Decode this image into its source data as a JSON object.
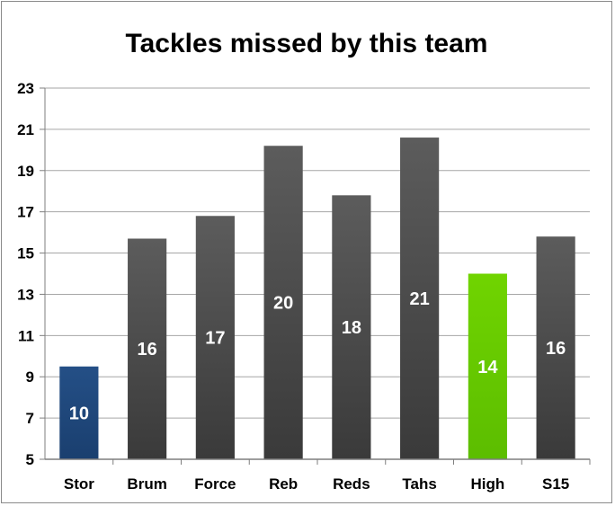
{
  "chart_data": {
    "type": "bar",
    "title": "Tackles missed by this team",
    "xlabel": "",
    "ylabel": "",
    "categories": [
      "Stor",
      "Brum",
      "Force",
      "Reb",
      "Reds",
      "Tahs",
      "High",
      "S15"
    ],
    "values": [
      9.5,
      15.7,
      16.8,
      20.2,
      17.8,
      20.6,
      14.0,
      15.8
    ],
    "data_labels": [
      "10",
      "16",
      "17",
      "20",
      "18",
      "21",
      "14",
      "16"
    ],
    "ylim": [
      5,
      23
    ],
    "yticks": [
      5,
      7,
      9,
      11,
      13,
      15,
      17,
      19,
      21,
      23
    ],
    "grid": true,
    "legend": "none",
    "colors": {
      "highlight_first": "#1f497d",
      "highlight_green": "#66cc00",
      "default_bar": "#4a4a4a",
      "grid": "#a6a6a6"
    }
  }
}
